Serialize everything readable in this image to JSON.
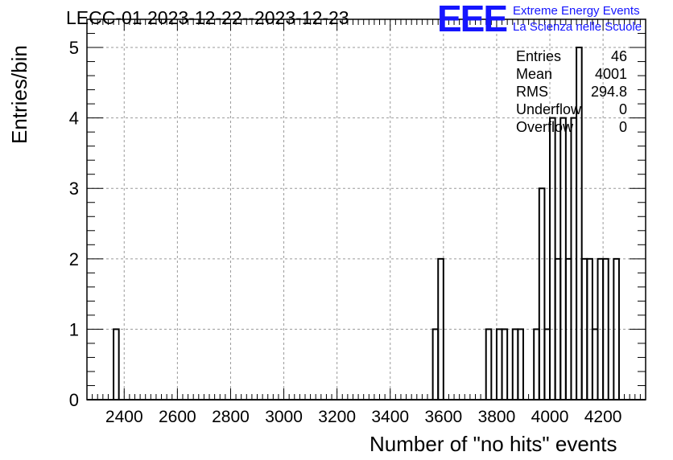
{
  "chart_data": {
    "type": "bar",
    "title": "LECC-01 2023-12-22--2023-12-23",
    "xlabel": "Number of \"no hits\" events",
    "ylabel": "Entries/bin",
    "xlim": [
      2260,
      4360
    ],
    "ylim": [
      0,
      5.4
    ],
    "bin_width": 20,
    "x_ticks": [
      2400,
      2600,
      2800,
      3000,
      3200,
      3400,
      3600,
      3800,
      4000,
      4200
    ],
    "y_ticks": [
      0,
      1,
      2,
      3,
      4,
      5
    ],
    "grid": true,
    "bins": [
      {
        "x": 2360,
        "value": 1
      },
      {
        "x": 3560,
        "value": 1
      },
      {
        "x": 3580,
        "value": 2
      },
      {
        "x": 3760,
        "value": 1
      },
      {
        "x": 3800,
        "value": 1
      },
      {
        "x": 3820,
        "value": 1
      },
      {
        "x": 3860,
        "value": 1
      },
      {
        "x": 3880,
        "value": 1
      },
      {
        "x": 3940,
        "value": 1
      },
      {
        "x": 3960,
        "value": 3
      },
      {
        "x": 3980,
        "value": 1
      },
      {
        "x": 4000,
        "value": 4
      },
      {
        "x": 4020,
        "value": 2
      },
      {
        "x": 4040,
        "value": 4
      },
      {
        "x": 4060,
        "value": 2
      },
      {
        "x": 4080,
        "value": 4
      },
      {
        "x": 4100,
        "value": 5
      },
      {
        "x": 4120,
        "value": 2
      },
      {
        "x": 4140,
        "value": 2
      },
      {
        "x": 4160,
        "value": 1
      },
      {
        "x": 4180,
        "value": 2
      },
      {
        "x": 4200,
        "value": 2
      },
      {
        "x": 4240,
        "value": 2
      }
    ],
    "stats": [
      {
        "label": "Entries",
        "value": "46"
      },
      {
        "label": "Mean",
        "value": "4001"
      },
      {
        "label": "RMS",
        "value": "294.8"
      },
      {
        "label": "Underflow",
        "value": "0"
      },
      {
        "label": "Overflow",
        "value": "0"
      }
    ]
  },
  "logo": {
    "mark": "EEE",
    "line1": "Extreme Energy Events",
    "line2": "La Scienza nelle Scuole",
    "color": "#1515ff"
  }
}
